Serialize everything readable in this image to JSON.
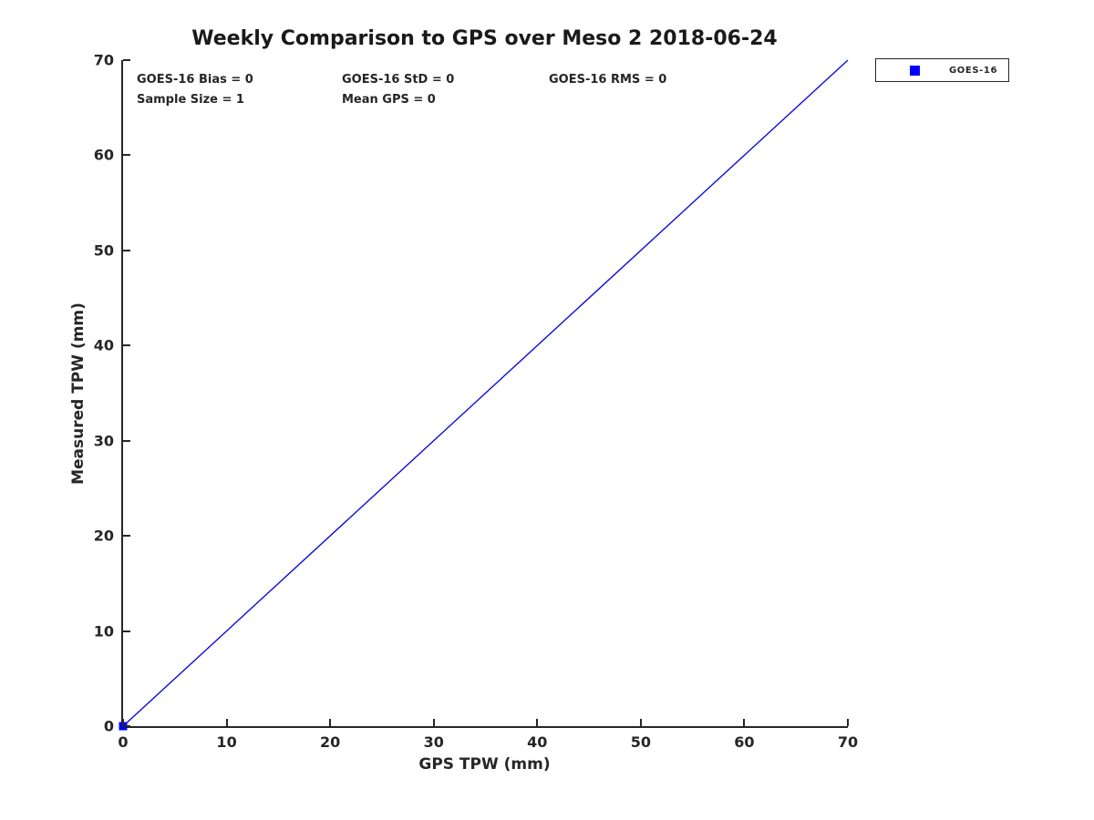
{
  "title": "Weekly Comparison to GPS over Meso 2 2018-06-24",
  "stats": {
    "bias": "GOES-16 Bias = 0",
    "std": "GOES-16 StD = 0",
    "rms": "GOES-16 RMS = 0",
    "sample_size": "Sample Size = 1",
    "mean_gps": "Mean GPS = 0"
  },
  "legend": {
    "position": "top-right-outside",
    "items": [
      {
        "label": "GOES-16",
        "marker": "square",
        "color": "#0000ff"
      }
    ]
  },
  "colors": {
    "line_blue": "#0d0dd6",
    "marker_blue": "#0000ff",
    "axis": "#262626"
  },
  "chart_data": {
    "type": "scatter",
    "title": "Weekly Comparison to GPS over Meso 2 2018-06-24",
    "xlabel": "GPS TPW (mm)",
    "ylabel": "Measured TPW (mm)",
    "xlim": [
      0,
      70
    ],
    "ylim": [
      0,
      70
    ],
    "x_ticks": [
      0,
      10,
      20,
      30,
      40,
      50,
      60,
      70
    ],
    "y_ticks": [
      0,
      10,
      20,
      30,
      40,
      50,
      60,
      70
    ],
    "grid": false,
    "legend_position": "top-right-outside",
    "annotations": [
      "GOES-16 Bias = 0",
      "GOES-16 StD = 0",
      "GOES-16 RMS = 0",
      "Sample Size = 1",
      "Mean GPS = 0"
    ],
    "series": [
      {
        "name": "GOES-16",
        "type": "scatter",
        "marker": "square",
        "color": "#0000ff",
        "points": [
          [
            0,
            0
          ]
        ]
      },
      {
        "name": "one-to-one-reference-line",
        "type": "line",
        "color": "#0d0dd6",
        "points": [
          [
            0,
            0
          ],
          [
            70,
            70
          ]
        ]
      }
    ]
  }
}
